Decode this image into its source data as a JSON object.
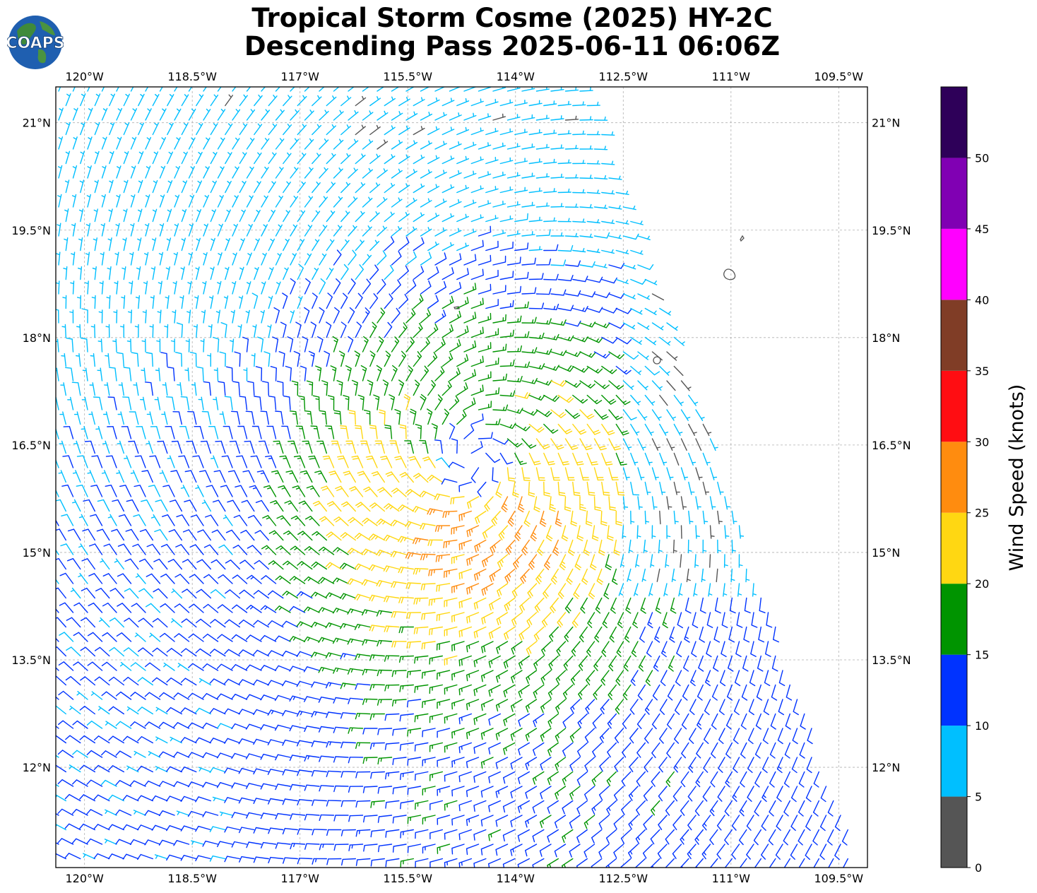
{
  "title": {
    "line1": "Tropical Storm Cosme (2025) HY-2C",
    "line2": "Descending Pass 2025-06-11 06:06Z"
  },
  "logo": {
    "text": "COAPS",
    "icon": "globe-logo-icon"
  },
  "map": {
    "lon_range": [
      -120.4,
      -109.1
    ],
    "lat_range": [
      10.6,
      21.5
    ],
    "lon_ticks": [
      {
        "value": -120,
        "label": "120°W"
      },
      {
        "value": -118.5,
        "label": "118.5°W"
      },
      {
        "value": -117,
        "label": "117°W"
      },
      {
        "value": -115.5,
        "label": "115.5°W"
      },
      {
        "value": -114,
        "label": "114°W"
      },
      {
        "value": -112.5,
        "label": "112.5°W"
      },
      {
        "value": -111,
        "label": "111°W"
      },
      {
        "value": -109.5,
        "label": "109.5°W"
      }
    ],
    "lat_ticks": [
      {
        "value": 21,
        "label": "21°N"
      },
      {
        "value": 19.5,
        "label": "19.5°N"
      },
      {
        "value": 18,
        "label": "18°N"
      },
      {
        "value": 16.5,
        "label": "16.5°N"
      },
      {
        "value": 15,
        "label": "15°N"
      },
      {
        "value": 13.5,
        "label": "13.5°N"
      },
      {
        "value": 12,
        "label": "12°N"
      }
    ],
    "grid": true,
    "storm_center": {
      "lon": -114.6,
      "lat": 16.3
    },
    "swath_type": "wind barbs"
  },
  "colorbar": {
    "label": "Wind Speed (knots)",
    "ticks": [
      "0",
      "5",
      "10",
      "15",
      "20",
      "25",
      "30",
      "35",
      "40",
      "45",
      "50"
    ],
    "bins": [
      {
        "min": 0,
        "max": 5,
        "color": "#555555"
      },
      {
        "min": 5,
        "max": 10,
        "color": "#00bfff"
      },
      {
        "min": 10,
        "max": 15,
        "color": "#0033ff"
      },
      {
        "min": 15,
        "max": 20,
        "color": "#009400"
      },
      {
        "min": 20,
        "max": 25,
        "color": "#ffd712"
      },
      {
        "min": 25,
        "max": 30,
        "color": "#ff8c0f"
      },
      {
        "min": 30,
        "max": 35,
        "color": "#ff0d12"
      },
      {
        "min": 35,
        "max": 40,
        "color": "#803d26"
      },
      {
        "min": 40,
        "max": 45,
        "color": "#ff00ff"
      },
      {
        "min": 45,
        "max": 50,
        "color": "#8000b3"
      },
      {
        "min": 50,
        "max": 55,
        "color": "#2e0059"
      }
    ]
  }
}
